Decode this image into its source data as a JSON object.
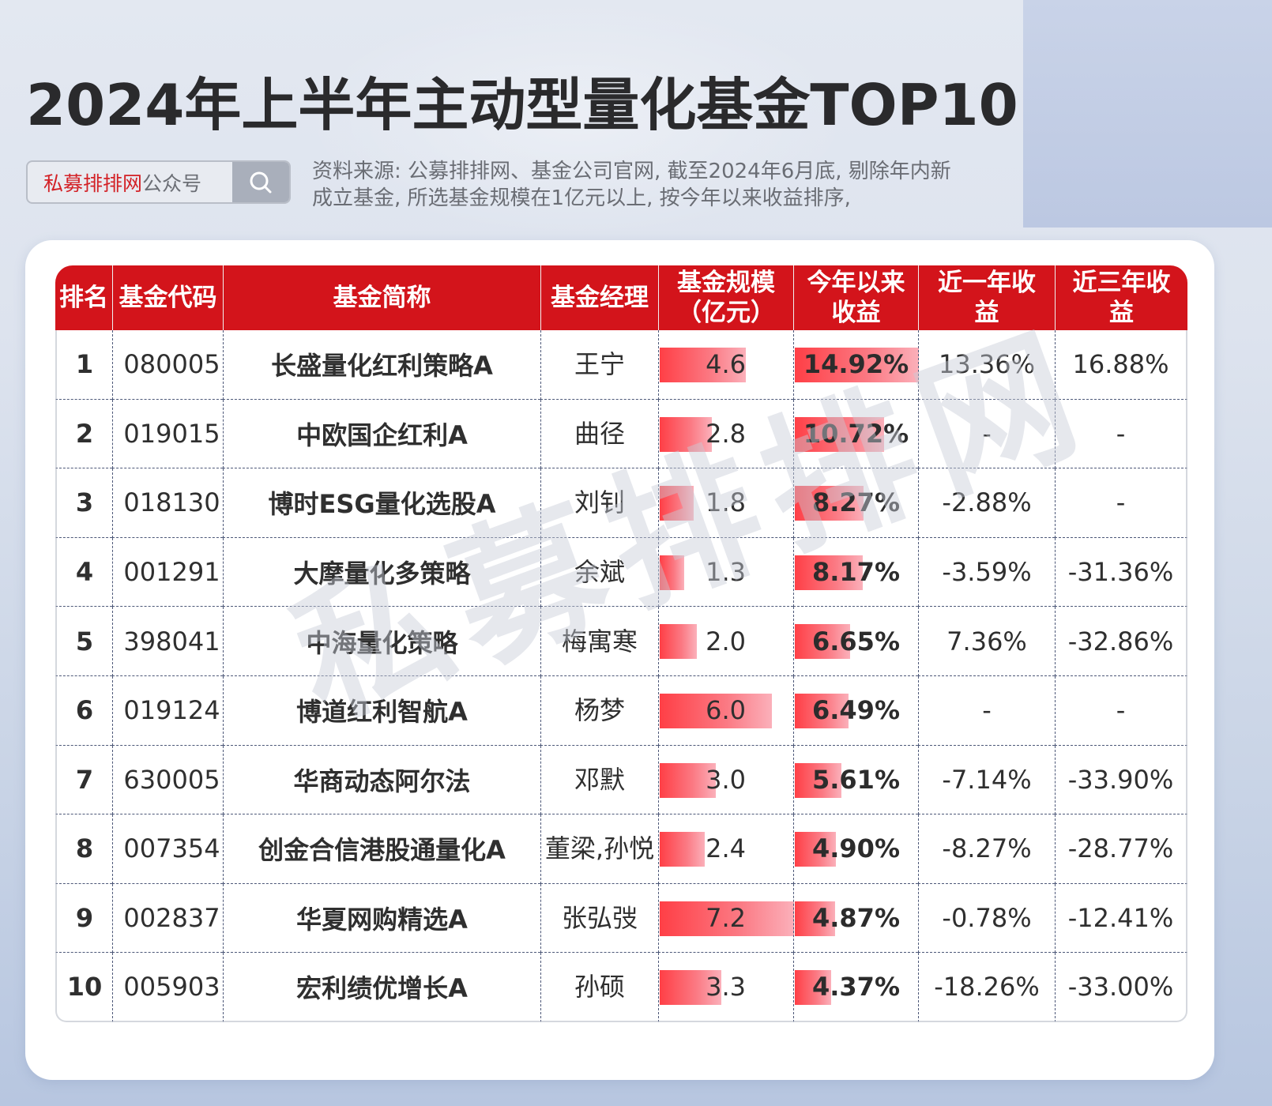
{
  "title": "2024年上半年主动型量化基金TOP10",
  "search": {
    "brand_red": "私募排排网",
    "brand_gray": "公众号",
    "icon": "search-icon"
  },
  "source_note": {
    "line1": "资料来源: 公募排排网、基金公司官网, 截至2024年6月底, 剔除年内新",
    "line2": "成立基金, 所选基金规模在1亿元以上, 按今年以来收益排序,"
  },
  "watermark": "私募排排网",
  "colors": {
    "header_red": "#d3141b",
    "bar_start": "#ff3f46",
    "bar_end": "#fbb0ba",
    "title_dark": "#2a2a2c"
  },
  "table": {
    "headers": {
      "rank": "排名",
      "code": "基金代码",
      "name": "基金简称",
      "manager": "基金经理",
      "size_l1": "基金规模",
      "size_l2": "（亿元）",
      "ytd_l1": "今年以来",
      "ytd_l2": "收益",
      "r1y_l1": "近一年收",
      "r1y_l2": "益",
      "r3y_l1": "近三年收",
      "r3y_l2": "益"
    },
    "rows": [
      {
        "rank": "1",
        "code": "080005",
        "name": "长盛量化红利策略A",
        "manager": "王宁",
        "size": "4.6",
        "ytd": "14.92%",
        "r1y": "13.36%",
        "r3y": "16.88%"
      },
      {
        "rank": "2",
        "code": "019015",
        "name": "中欧国企红利A",
        "manager": "曲径",
        "size": "2.8",
        "ytd": "10.72%",
        "r1y": "-",
        "r3y": "-"
      },
      {
        "rank": "3",
        "code": "018130",
        "name": "博时ESG量化选股A",
        "manager": "刘钊",
        "size": "1.8",
        "ytd": "8.27%",
        "r1y": "-2.88%",
        "r3y": "-"
      },
      {
        "rank": "4",
        "code": "001291",
        "name": "大摩量化多策略",
        "manager": "余斌",
        "size": "1.3",
        "ytd": "8.17%",
        "r1y": "-3.59%",
        "r3y": "-31.36%"
      },
      {
        "rank": "5",
        "code": "398041",
        "name": "中海量化策略",
        "manager": "梅寓寒",
        "size": "2.0",
        "ytd": "6.65%",
        "r1y": "7.36%",
        "r3y": "-32.86%"
      },
      {
        "rank": "6",
        "code": "019124",
        "name": "博道红利智航A",
        "manager": "杨梦",
        "size": "6.0",
        "ytd": "6.49%",
        "r1y": "-",
        "r3y": "-"
      },
      {
        "rank": "7",
        "code": "630005",
        "name": "华商动态阿尔法",
        "manager": "邓默",
        "size": "3.0",
        "ytd": "5.61%",
        "r1y": "-7.14%",
        "r3y": "-33.90%"
      },
      {
        "rank": "8",
        "code": "007354",
        "name": "创金合信港股通量化A",
        "manager": "董梁,孙悦",
        "size": "2.4",
        "ytd": "4.90%",
        "r1y": "-8.27%",
        "r3y": "-28.77%"
      },
      {
        "rank": "9",
        "code": "002837",
        "name": "华夏网购精选A",
        "manager": "张弘弢",
        "size": "7.2",
        "ytd": "4.87%",
        "r1y": "-0.78%",
        "r3y": "-12.41%"
      },
      {
        "rank": "10",
        "code": "005903",
        "name": "宏利绩优增长A",
        "manager": "孙硕",
        "size": "3.3",
        "ytd": "4.37%",
        "r1y": "-18.26%",
        "r3y": "-33.00%"
      }
    ]
  },
  "chart_data": {
    "type": "table",
    "title": "2024年上半年主动型量化基金TOP10",
    "columns": [
      "排名",
      "基金代码",
      "基金简称",
      "基金经理",
      "基金规模（亿元）",
      "今年以来收益",
      "近一年收益",
      "近三年收益"
    ],
    "categories": [
      "长盛量化红利策略A",
      "中欧国企红利A",
      "博时ESG量化选股A",
      "大摩量化多策略",
      "中海量化策略",
      "博道红利智航A",
      "华商动态阿尔法",
      "创金合信港股通量化A",
      "华夏网购精选A",
      "宏利绩优增长A"
    ],
    "series": [
      {
        "name": "基金规模（亿元）",
        "values": [
          4.6,
          2.8,
          1.8,
          1.3,
          2.0,
          6.0,
          3.0,
          2.4,
          7.2,
          3.3
        ]
      },
      {
        "name": "今年以来收益(%)",
        "values": [
          14.92,
          10.72,
          8.27,
          8.17,
          6.65,
          6.49,
          5.61,
          4.9,
          4.87,
          4.37
        ]
      },
      {
        "name": "近一年收益(%)",
        "values": [
          13.36,
          null,
          -2.88,
          -3.59,
          7.36,
          null,
          -7.14,
          -8.27,
          -0.78,
          -18.26
        ]
      },
      {
        "name": "近三年收益(%)",
        "values": [
          16.88,
          null,
          null,
          -31.36,
          -32.86,
          null,
          -33.9,
          -28.77,
          -12.41,
          -33.0
        ]
      }
    ],
    "size_bar_max": 7.2,
    "ytd_bar_max": 14.92
  }
}
